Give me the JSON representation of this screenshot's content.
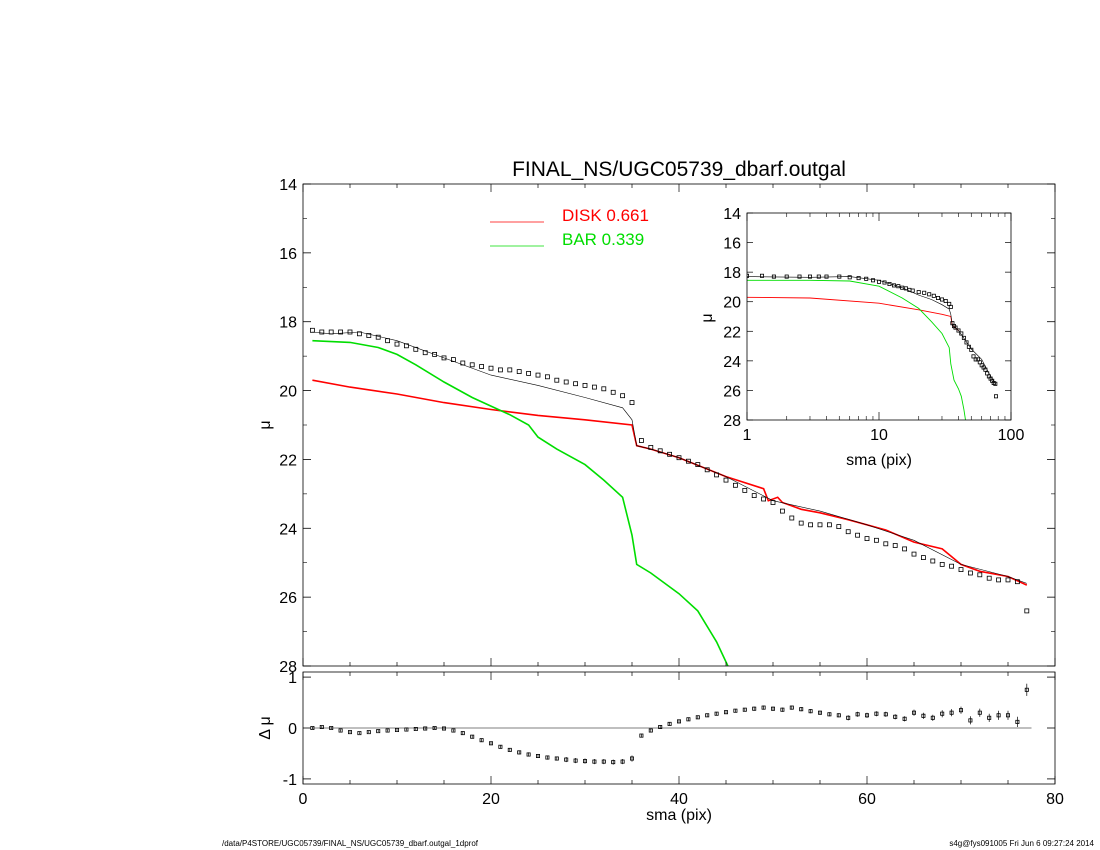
{
  "footer": {
    "left": "/data/P4STORE/UGC05739/FINAL_NS/UGC05739_dbarf.outgal_1dprof",
    "right": "s4g@fys091005  Fri Jun  6 09:27:24 2014"
  },
  "colors": {
    "disk": "#ff0000",
    "bar": "#00dd00",
    "data": "#000000"
  },
  "chart_data": [
    {
      "panel": "main",
      "type": "line",
      "title": "FINAL_NS/UGC05739_dbarf.outgal",
      "xlabel": "",
      "ylabel": "μ",
      "xlim": [
        0,
        80
      ],
      "ylim": [
        28,
        14
      ],
      "yticks": [
        14,
        16,
        18,
        20,
        22,
        24,
        26,
        28
      ],
      "grid": false,
      "legend_position": "top-center",
      "legend": [
        {
          "name": "DISK",
          "value": "0.661",
          "color": "#ff0000"
        },
        {
          "name": "BAR",
          "value": "0.339",
          "color": "#00dd00"
        }
      ],
      "series": [
        {
          "name": "DISK",
          "style": "line",
          "color": "#ff0000",
          "x": [
            1,
            5,
            10,
            15,
            20,
            25,
            30,
            35,
            35.5,
            37,
            40,
            45,
            49,
            49.5,
            50.5,
            51,
            53,
            55,
            58,
            62,
            65,
            68,
            70,
            72,
            75,
            77
          ],
          "y": [
            19.7,
            19.9,
            20.1,
            20.35,
            20.55,
            20.72,
            20.85,
            21.0,
            21.6,
            21.7,
            21.95,
            22.5,
            22.85,
            23.2,
            23.1,
            23.25,
            23.45,
            23.55,
            23.75,
            24.05,
            24.4,
            24.6,
            25.05,
            25.25,
            25.4,
            25.65
          ]
        },
        {
          "name": "BAR",
          "style": "line",
          "color": "#00dd00",
          "x": [
            1,
            5,
            8,
            10,
            12,
            15,
            18,
            20,
            22,
            24,
            25,
            27,
            30,
            32,
            34,
            35,
            35.5,
            37,
            40,
            42,
            44,
            45.2
          ],
          "y": [
            18.55,
            18.6,
            18.75,
            18.95,
            19.25,
            19.75,
            20.2,
            20.45,
            20.7,
            21.0,
            21.35,
            21.7,
            22.15,
            22.6,
            23.1,
            24.2,
            25.05,
            25.3,
            25.9,
            26.4,
            27.3,
            28.0
          ]
        },
        {
          "name": "",
          "style": "thin-line",
          "color": "#000000",
          "x": [
            1,
            3,
            6,
            10,
            15,
            20,
            25,
            30,
            34,
            35,
            35.5,
            37,
            40,
            45,
            50,
            55,
            60,
            65,
            70,
            75,
            77
          ],
          "y": [
            18.3,
            18.35,
            18.3,
            18.55,
            19.05,
            19.55,
            19.85,
            20.2,
            20.5,
            20.85,
            21.6,
            21.7,
            21.95,
            22.5,
            23.2,
            23.5,
            23.9,
            24.35,
            25.05,
            25.4,
            25.6
          ]
        },
        {
          "name": "",
          "style": "markers",
          "color": "#000000",
          "x": [
            1,
            2,
            3,
            4,
            5,
            6,
            7,
            8,
            9,
            10,
            11,
            12,
            13,
            14,
            15,
            16,
            17,
            18,
            19,
            20,
            21,
            22,
            23,
            24,
            25,
            26,
            27,
            28,
            29,
            30,
            31,
            32,
            33,
            34,
            35,
            36,
            37,
            38,
            39,
            40,
            41,
            42,
            43,
            44,
            45,
            46,
            47,
            48,
            49,
            50,
            51,
            52,
            53,
            54,
            55,
            56,
            57,
            58,
            59,
            60,
            61,
            62,
            63,
            64,
            65,
            66,
            67,
            68,
            69,
            70,
            71,
            72,
            73,
            74,
            75,
            76,
            77
          ],
          "y": [
            18.25,
            18.3,
            18.3,
            18.3,
            18.3,
            18.35,
            18.4,
            18.45,
            18.55,
            18.65,
            18.7,
            18.8,
            18.9,
            18.95,
            19.05,
            19.1,
            19.2,
            19.25,
            19.3,
            19.35,
            19.4,
            19.4,
            19.45,
            19.5,
            19.55,
            19.6,
            19.7,
            19.75,
            19.8,
            19.85,
            19.9,
            19.95,
            20.05,
            20.15,
            20.35,
            21.45,
            21.65,
            21.75,
            21.85,
            21.95,
            22.05,
            22.15,
            22.3,
            22.45,
            22.6,
            22.75,
            22.9,
            23.05,
            23.15,
            23.25,
            23.5,
            23.7,
            23.85,
            23.9,
            23.9,
            23.9,
            23.95,
            24.1,
            24.2,
            24.3,
            24.35,
            24.45,
            24.5,
            24.6,
            24.75,
            24.85,
            24.95,
            25.05,
            25.1,
            25.2,
            25.3,
            25.35,
            25.45,
            25.5,
            25.5,
            25.55,
            26.4
          ]
        }
      ]
    },
    {
      "panel": "residual",
      "type": "scatter",
      "xlabel": "sma (pix)",
      "ylabel": "Δ μ",
      "xlim": [
        0,
        80
      ],
      "ylim": [
        -1.1,
        1.1
      ],
      "xticks": [
        0,
        20,
        40,
        60,
        80
      ],
      "yticks": [
        1,
        0,
        -1
      ],
      "zero_line": true,
      "series": [
        {
          "name": "",
          "style": "markers-errorbars",
          "color": "#000000",
          "x": [
            1,
            2,
            3,
            4,
            5,
            6,
            7,
            8,
            9,
            10,
            11,
            12,
            13,
            14,
            15,
            16,
            17,
            18,
            19,
            20,
            21,
            22,
            23,
            24,
            25,
            26,
            27,
            28,
            29,
            30,
            31,
            32,
            33,
            34,
            35,
            36,
            37,
            38,
            39,
            40,
            41,
            42,
            43,
            44,
            45,
            46,
            47,
            48,
            49,
            50,
            51,
            52,
            53,
            54,
            55,
            56,
            57,
            58,
            59,
            60,
            61,
            62,
            63,
            64,
            65,
            66,
            67,
            68,
            69,
            70,
            71,
            72,
            73,
            74,
            75,
            76,
            77
          ],
          "y": [
            0.0,
            0.02,
            0.0,
            -0.05,
            -0.08,
            -0.1,
            -0.08,
            -0.06,
            -0.05,
            -0.04,
            -0.03,
            -0.02,
            -0.01,
            0.0,
            -0.01,
            -0.05,
            -0.1,
            -0.17,
            -0.24,
            -0.3,
            -0.37,
            -0.43,
            -0.48,
            -0.52,
            -0.55,
            -0.58,
            -0.6,
            -0.62,
            -0.64,
            -0.65,
            -0.66,
            -0.66,
            -0.67,
            -0.66,
            -0.6,
            -0.15,
            -0.05,
            0.02,
            0.08,
            0.13,
            0.17,
            0.21,
            0.25,
            0.28,
            0.31,
            0.34,
            0.36,
            0.38,
            0.4,
            0.38,
            0.36,
            0.4,
            0.37,
            0.33,
            0.3,
            0.27,
            0.25,
            0.2,
            0.27,
            0.25,
            0.28,
            0.27,
            0.22,
            0.18,
            0.3,
            0.24,
            0.2,
            0.28,
            0.3,
            0.35,
            0.15,
            0.3,
            0.2,
            0.25,
            0.25,
            0.12,
            0.75
          ],
          "err": [
            0.02,
            0.02,
            0.02,
            0.02,
            0.02,
            0.02,
            0.02,
            0.02,
            0.02,
            0.02,
            0.02,
            0.02,
            0.02,
            0.02,
            0.02,
            0.02,
            0.03,
            0.03,
            0.03,
            0.03,
            0.03,
            0.03,
            0.04,
            0.04,
            0.04,
            0.04,
            0.04,
            0.05,
            0.05,
            0.05,
            0.05,
            0.05,
            0.05,
            0.05,
            0.06,
            0.03,
            0.03,
            0.03,
            0.03,
            0.03,
            0.03,
            0.03,
            0.03,
            0.03,
            0.03,
            0.03,
            0.03,
            0.04,
            0.04,
            0.04,
            0.04,
            0.04,
            0.04,
            0.04,
            0.04,
            0.04,
            0.04,
            0.05,
            0.05,
            0.05,
            0.05,
            0.05,
            0.05,
            0.05,
            0.06,
            0.06,
            0.06,
            0.07,
            0.07,
            0.07,
            0.08,
            0.08,
            0.08,
            0.09,
            0.09,
            0.1,
            0.12
          ]
        }
      ]
    },
    {
      "panel": "inset",
      "type": "line",
      "xlabel": "sma (pix)",
      "ylabel": "μ",
      "xscale": "log",
      "xlim": [
        1,
        100
      ],
      "ylim": [
        28,
        14
      ],
      "xticks": [
        1,
        10,
        100
      ],
      "yticks": [
        14,
        16,
        18,
        20,
        22,
        24,
        26,
        28
      ],
      "series": [
        {
          "name": "DISK",
          "style": "line",
          "color": "#ff0000",
          "x": [
            1,
            3,
            10,
            20,
            30,
            35,
            36,
            40
          ],
          "y": [
            19.7,
            19.75,
            20.1,
            20.55,
            20.85,
            21.0,
            21.6,
            21.95
          ]
        },
        {
          "name": "BAR",
          "style": "line",
          "color": "#00dd00",
          "x": [
            1,
            3,
            6,
            10,
            15,
            20,
            25,
            30,
            34,
            35,
            37,
            40,
            42,
            44,
            45.2
          ],
          "y": [
            18.55,
            18.55,
            18.6,
            18.95,
            19.75,
            20.45,
            21.35,
            22.15,
            23.1,
            24.2,
            25.3,
            25.9,
            26.4,
            27.3,
            28.0
          ]
        },
        {
          "name": "",
          "style": "thin-line",
          "color": "#000000",
          "x": [
            1,
            3,
            6,
            10,
            15,
            20,
            25,
            30,
            34,
            35,
            36,
            40,
            50,
            60,
            70,
            77
          ],
          "y": [
            18.3,
            18.35,
            18.3,
            18.55,
            19.05,
            19.55,
            19.85,
            20.2,
            20.5,
            20.85,
            21.6,
            21.95,
            23.2,
            23.9,
            25.05,
            25.6
          ]
        },
        {
          "name": "",
          "style": "markers",
          "color": "#000000",
          "x": [
            1,
            1.3,
            1.6,
            2,
            2.5,
            3,
            3.5,
            4,
            5,
            6,
            7,
            8,
            9,
            10,
            11,
            12,
            13,
            14,
            15,
            16,
            17,
            18,
            20,
            22,
            24,
            26,
            28,
            30,
            32,
            34,
            35,
            36,
            37,
            38,
            40,
            42,
            44,
            46,
            48,
            50,
            52,
            54,
            56,
            58,
            60,
            62,
            64,
            66,
            68,
            70,
            72,
            74,
            76,
            77
          ],
          "y": [
            18.25,
            18.25,
            18.3,
            18.3,
            18.3,
            18.3,
            18.3,
            18.3,
            18.3,
            18.35,
            18.4,
            18.45,
            18.55,
            18.65,
            18.7,
            18.8,
            18.9,
            18.95,
            19.05,
            19.1,
            19.2,
            19.25,
            19.35,
            19.4,
            19.5,
            19.6,
            19.75,
            19.85,
            19.95,
            20.15,
            20.35,
            21.45,
            21.65,
            21.75,
            21.95,
            22.15,
            22.45,
            22.75,
            23.05,
            23.25,
            23.7,
            23.9,
            23.9,
            24.1,
            24.3,
            24.45,
            24.6,
            24.85,
            25.05,
            25.2,
            25.35,
            25.5,
            25.55,
            26.4
          ]
        }
      ]
    }
  ]
}
